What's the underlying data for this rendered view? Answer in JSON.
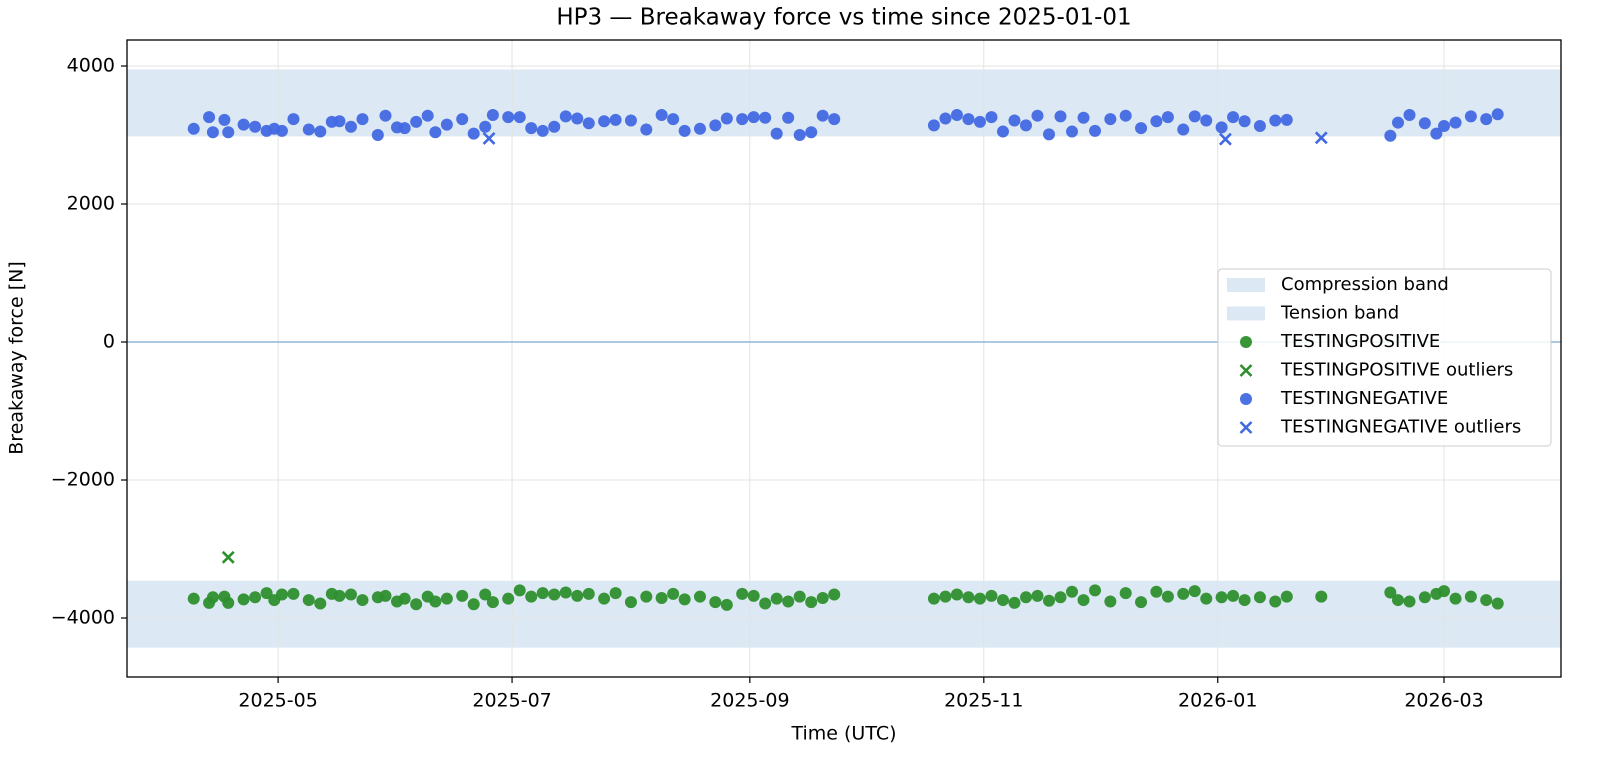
{
  "chart_data": {
    "type": "scatter",
    "title": "HP3 — Breakaway force vs time since 2025-01-01",
    "xlabel": "Time (UTC)",
    "ylabel": "Breakaway force [N]",
    "xlim": [
      80.6,
      454.5
    ],
    "xticks": [
      {
        "value": 120,
        "label": "2025-05"
      },
      {
        "value": 181,
        "label": "2025-07"
      },
      {
        "value": 243,
        "label": "2025-09"
      },
      {
        "value": 304,
        "label": "2025-11"
      },
      {
        "value": 365,
        "label": "2026-01"
      },
      {
        "value": 424,
        "label": "2026-03"
      }
    ],
    "ylim": [
      -4855,
      4377
    ],
    "yticks": [
      {
        "value": -4000,
        "label": "−4000"
      },
      {
        "value": -2000,
        "label": "−2000"
      },
      0,
      2000,
      4000
    ],
    "grid": true,
    "reference_line": 0,
    "legend": "right",
    "bands": [
      {
        "name": "Compression band",
        "range": [
          2980,
          3950
        ],
        "color": "#dce8f3"
      },
      {
        "name": "Tension band",
        "range": [
          -4430,
          -3460
        ],
        "color": "#dce8f3"
      }
    ],
    "series": [
      {
        "name": "TESTINGPOSITIVE",
        "color": "#2d8f2d",
        "marker": "o",
        "x": [
          98,
          102,
          103,
          106,
          107,
          111,
          114,
          117,
          119,
          121,
          124,
          128,
          131,
          134,
          136,
          139,
          142,
          146,
          148,
          151,
          153,
          156,
          159,
          161,
          164,
          168,
          171,
          174,
          176,
          180,
          183,
          186,
          189,
          192,
          195,
          198,
          201,
          205,
          208,
          212,
          216,
          220,
          223,
          226,
          230,
          234,
          237,
          241,
          244,
          247,
          250,
          253,
          256,
          259,
          262,
          265,
          291,
          294,
          297,
          300,
          303,
          306,
          309,
          312,
          315,
          318,
          321,
          324,
          327,
          330,
          333,
          337,
          341,
          345,
          349,
          352,
          356,
          359,
          362,
          366,
          369,
          372,
          376,
          380,
          383,
          392,
          410,
          412,
          415,
          419,
          422,
          424,
          427,
          431,
          435,
          438
        ],
        "values": [
          -3720,
          -3780,
          -3700,
          -3690,
          -3780,
          -3730,
          -3700,
          -3640,
          -3740,
          -3660,
          -3650,
          -3740,
          -3790,
          -3650,
          -3680,
          -3660,
          -3740,
          -3700,
          -3680,
          -3760,
          -3720,
          -3800,
          -3690,
          -3760,
          -3720,
          -3680,
          -3800,
          -3660,
          -3770,
          -3720,
          -3600,
          -3690,
          -3640,
          -3660,
          -3630,
          -3680,
          -3650,
          -3720,
          -3640,
          -3770,
          -3690,
          -3710,
          -3650,
          -3730,
          -3690,
          -3770,
          -3810,
          -3650,
          -3680,
          -3790,
          -3720,
          -3760,
          -3690,
          -3770,
          -3710,
          -3660,
          -3720,
          -3690,
          -3660,
          -3700,
          -3720,
          -3680,
          -3740,
          -3780,
          -3700,
          -3680,
          -3750,
          -3700,
          -3620,
          -3740,
          -3600,
          -3760,
          -3640,
          -3770,
          -3620,
          -3690,
          -3650,
          -3610,
          -3720,
          -3700,
          -3680,
          -3740,
          -3700,
          -3760,
          -3690,
          -3690,
          -3630,
          -3740,
          -3760,
          -3700,
          -3650,
          -3610,
          -3720,
          -3690,
          -3740,
          -3790
        ]
      },
      {
        "name": "TESTINGPOSITIVE outliers",
        "color": "#2d8f2d",
        "marker": "x",
        "x": [
          107
        ],
        "values": [
          -3120
        ]
      },
      {
        "name": "TESTINGNEGATIVE",
        "color": "#4169e1",
        "marker": "o",
        "x": [
          98,
          102,
          103,
          106,
          107,
          111,
          114,
          117,
          119,
          121,
          124,
          128,
          131,
          134,
          136,
          139,
          142,
          146,
          148,
          151,
          153,
          156,
          159,
          161,
          164,
          168,
          171,
          174,
          176,
          180,
          183,
          186,
          189,
          192,
          195,
          198,
          201,
          205,
          208,
          212,
          216,
          220,
          223,
          226,
          230,
          234,
          237,
          241,
          244,
          247,
          250,
          253,
          256,
          259,
          262,
          265,
          291,
          294,
          297,
          300,
          303,
          306,
          309,
          312,
          315,
          318,
          321,
          324,
          327,
          330,
          333,
          337,
          341,
          345,
          349,
          352,
          356,
          359,
          362,
          366,
          369,
          372,
          376,
          380,
          383,
          410,
          412,
          415,
          419,
          422,
          424,
          427,
          431,
          435,
          438
        ],
        "values": [
          3090,
          3260,
          3040,
          3220,
          3040,
          3150,
          3120,
          3060,
          3090,
          3060,
          3230,
          3080,
          3050,
          3190,
          3200,
          3120,
          3230,
          3000,
          3280,
          3110,
          3100,
          3190,
          3280,
          3040,
          3150,
          3230,
          3020,
          3120,
          3290,
          3260,
          3260,
          3100,
          3060,
          3120,
          3270,
          3240,
          3170,
          3200,
          3220,
          3210,
          3080,
          3290,
          3230,
          3060,
          3090,
          3140,
          3240,
          3230,
          3260,
          3250,
          3020,
          3250,
          3000,
          3040,
          3280,
          3230,
          3140,
          3240,
          3290,
          3230,
          3190,
          3260,
          3050,
          3210,
          3140,
          3280,
          3010,
          3270,
          3050,
          3250,
          3060,
          3230,
          3280,
          3100,
          3200,
          3260,
          3080,
          3270,
          3210,
          3110,
          3260,
          3200,
          3130,
          3210,
          3220,
          2990,
          3180,
          3290,
          3170,
          3020,
          3130,
          3180,
          3270,
          3230,
          3300
        ]
      },
      {
        "name": "TESTINGNEGATIVE outliers",
        "color": "#4169e1",
        "marker": "x",
        "x": [
          175,
          367,
          392
        ],
        "values": [
          2950,
          2940,
          2960
        ]
      }
    ]
  }
}
